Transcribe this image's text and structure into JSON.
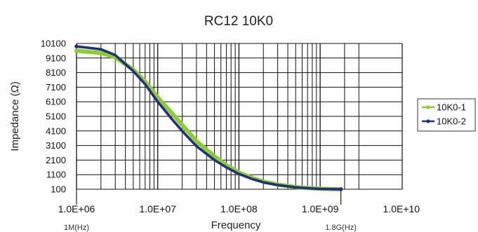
{
  "chart_data": {
    "type": "line",
    "title": "RC12 10K0",
    "xlabel": "Frequency",
    "ylabel": "Impedance (Ω)",
    "x_scale": "log",
    "xlim": [
      1000000,
      3000000000
    ],
    "ylim": [
      100,
      10100
    ],
    "x_ticks": [
      1000000,
      10000000,
      100000000,
      1000000000,
      10000000000
    ],
    "x_tick_labels": [
      "1.0E+06",
      "1.0E+07",
      "1.0E+08",
      "1.0E+09",
      "1.0E+10"
    ],
    "y_ticks": [
      10100,
      9100,
      8100,
      7100,
      6100,
      5100,
      4100,
      3100,
      2100,
      1100,
      100
    ],
    "y_tick_labels": [
      "10100",
      "9100",
      "8100",
      "7100",
      "6100",
      "5100",
      "4100",
      "3100",
      "2100",
      "1100",
      "100"
    ],
    "grid": true,
    "legend_position": "right",
    "annotations": [
      {
        "text": "1M(Hz)",
        "x": 1000000
      },
      {
        "text": "1.8G(Hz)",
        "x": 1800000000
      }
    ],
    "series": [
      {
        "name": "10K0-1",
        "color": "#8ccf2c",
        "x": [
          1000000,
          2000000,
          3000000,
          5000000,
          7000000,
          10000000,
          15000000,
          20000000,
          30000000,
          50000000,
          70000000,
          100000000,
          150000000,
          200000000,
          300000000,
          500000000,
          700000000,
          1000000000,
          1800000000
        ],
        "y": [
          9600,
          9450,
          9150,
          8300,
          7500,
          6400,
          5300,
          4500,
          3400,
          2350,
          1750,
          1250,
          850,
          620,
          420,
          250,
          180,
          130,
          100
        ]
      },
      {
        "name": "10K0-2",
        "color": "#1f2f86",
        "x": [
          1000000,
          2000000,
          3000000,
          5000000,
          7000000,
          10000000,
          15000000,
          20000000,
          30000000,
          50000000,
          70000000,
          100000000,
          150000000,
          200000000,
          300000000,
          500000000,
          700000000,
          1000000000,
          1800000000
        ],
        "y": [
          9900,
          9700,
          9300,
          8200,
          7300,
          6100,
          4900,
          4100,
          3050,
          2100,
          1600,
          1150,
          780,
          570,
          390,
          230,
          170,
          125,
          100
        ]
      }
    ]
  }
}
